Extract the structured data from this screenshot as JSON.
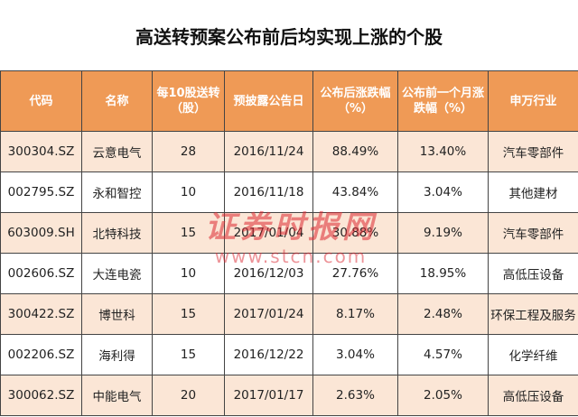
{
  "title": "高送转预案公布前后均实现上涨的个股",
  "table": {
    "headers": {
      "code": "代码",
      "name": "名称",
      "ratio": "每10股送转（股）",
      "date": "预披露公告日",
      "after": "公布后涨跌幅（%）",
      "before": "公布前一个月涨跌幅（%）",
      "industry": "申万行业"
    },
    "rows": [
      {
        "code": "300304.SZ",
        "name": "云意电气",
        "ratio": "28",
        "date": "2016/11/24",
        "after": "88.49%",
        "before": "13.40%",
        "industry": "汽车零部件"
      },
      {
        "code": "002795.SZ",
        "name": "永和智控",
        "ratio": "10",
        "date": "2016/11/18",
        "after": "43.84%",
        "before": "3.04%",
        "industry": "其他建材"
      },
      {
        "code": "603009.SH",
        "name": "北特科技",
        "ratio": "15",
        "date": "2017/01/04",
        "after": "30.88%",
        "before": "9.19%",
        "industry": "汽车零部件"
      },
      {
        "code": "002606.SZ",
        "name": "大连电瓷",
        "ratio": "10",
        "date": "2016/12/03",
        "after": "27.76%",
        "before": "18.95%",
        "industry": "高低压设备"
      },
      {
        "code": "300422.SZ",
        "name": "博世科",
        "ratio": "15",
        "date": "2017/01/24",
        "after": "8.17%",
        "before": "2.48%",
        "industry": "环保工程及服务"
      },
      {
        "code": "002206.SZ",
        "name": "海利得",
        "ratio": "15",
        "date": "2016/12/22",
        "after": "3.04%",
        "before": "4.57%",
        "industry": "化学纤维"
      },
      {
        "code": "300062.SZ",
        "name": "中能电气",
        "ratio": "20",
        "date": "2017/01/17",
        "after": "2.63%",
        "before": "2.05%",
        "industry": "高低压设备"
      }
    ]
  },
  "watermark": {
    "text_cn": "证券时报网",
    "url": "www.stcn.com"
  }
}
